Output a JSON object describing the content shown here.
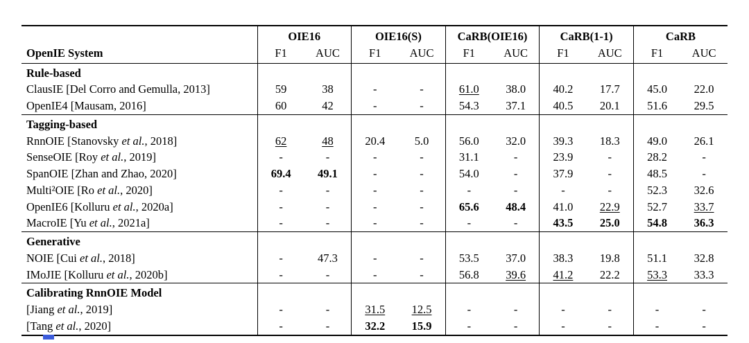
{
  "page": {
    "background": "#ffffff",
    "text_color": "#000000",
    "artifact_color": "#3b5bdb"
  },
  "table": {
    "row_header": "OpenIE System",
    "col_groups": [
      {
        "label": "OIE16",
        "metrics": [
          "F1",
          "AUC"
        ]
      },
      {
        "label": "OIE16(S)",
        "metrics": [
          "F1",
          "AUC"
        ]
      },
      {
        "label": "CaRB(OIE16)",
        "metrics": [
          "F1",
          "AUC"
        ]
      },
      {
        "label": "CaRB(1-1)",
        "metrics": [
          "F1",
          "AUC"
        ]
      },
      {
        "label": "CaRB",
        "metrics": [
          "F1",
          "AUC"
        ]
      }
    ],
    "groups": [
      {
        "label": "Rule-based",
        "rows": [
          {
            "name": [
              {
                "t": "ClausIE [Del Corro and Gemulla, 2013]"
              }
            ],
            "values": [
              {
                "t": "59"
              },
              {
                "t": "38"
              },
              {
                "t": "-"
              },
              {
                "t": "-"
              },
              {
                "t": "61.0",
                "u": true
              },
              {
                "t": "38.0"
              },
              {
                "t": "40.2"
              },
              {
                "t": "17.7"
              },
              {
                "t": "45.0"
              },
              {
                "t": "22.0"
              }
            ]
          },
          {
            "name": [
              {
                "t": "OpenIE4 [Mausam, 2016]"
              }
            ],
            "values": [
              {
                "t": "60"
              },
              {
                "t": "42"
              },
              {
                "t": "-"
              },
              {
                "t": "-"
              },
              {
                "t": "54.3"
              },
              {
                "t": "37.1"
              },
              {
                "t": "40.5"
              },
              {
                "t": "20.1"
              },
              {
                "t": "51.6"
              },
              {
                "t": "29.5"
              }
            ]
          }
        ]
      },
      {
        "label": "Tagging-based",
        "rows": [
          {
            "name": [
              {
                "t": "RnnOIE [Stanovsky "
              },
              {
                "t": "et al.",
                "i": true
              },
              {
                "t": ", 2018]"
              }
            ],
            "values": [
              {
                "t": "62",
                "u": true
              },
              {
                "t": "48",
                "u": true
              },
              {
                "t": "20.4"
              },
              {
                "t": "5.0"
              },
              {
                "t": "56.0"
              },
              {
                "t": "32.0"
              },
              {
                "t": "39.3"
              },
              {
                "t": "18.3"
              },
              {
                "t": "49.0"
              },
              {
                "t": "26.1"
              }
            ]
          },
          {
            "name": [
              {
                "t": "SenseOIE [Roy "
              },
              {
                "t": "et al.",
                "i": true
              },
              {
                "t": ", 2019]"
              }
            ],
            "values": [
              {
                "t": "-"
              },
              {
                "t": "-"
              },
              {
                "t": "-"
              },
              {
                "t": "-"
              },
              {
                "t": "31.1"
              },
              {
                "t": "-"
              },
              {
                "t": "23.9"
              },
              {
                "t": "-"
              },
              {
                "t": "28.2"
              },
              {
                "t": "-"
              }
            ]
          },
          {
            "name": [
              {
                "t": "SpanOIE [Zhan and Zhao, 2020]"
              }
            ],
            "values": [
              {
                "t": "69.4",
                "b": true
              },
              {
                "t": "49.1",
                "b": true
              },
              {
                "t": "-"
              },
              {
                "t": "-"
              },
              {
                "t": "54.0"
              },
              {
                "t": "-"
              },
              {
                "t": "37.9"
              },
              {
                "t": "-"
              },
              {
                "t": "48.5"
              },
              {
                "t": "-"
              }
            ]
          },
          {
            "name": [
              {
                "t": "Multi²OIE [Ro "
              },
              {
                "t": "et al.",
                "i": true
              },
              {
                "t": ", 2020]"
              }
            ],
            "values": [
              {
                "t": "-"
              },
              {
                "t": "-"
              },
              {
                "t": "-"
              },
              {
                "t": "-"
              },
              {
                "t": "-"
              },
              {
                "t": "-"
              },
              {
                "t": "-"
              },
              {
                "t": "-"
              },
              {
                "t": "52.3"
              },
              {
                "t": "32.6"
              }
            ]
          },
          {
            "name": [
              {
                "t": "OpenIE6 [Kolluru "
              },
              {
                "t": "et al.",
                "i": true
              },
              {
                "t": ", 2020a]"
              }
            ],
            "values": [
              {
                "t": "-"
              },
              {
                "t": "-"
              },
              {
                "t": "-"
              },
              {
                "t": "-"
              },
              {
                "t": "65.6",
                "b": true
              },
              {
                "t": "48.4",
                "b": true
              },
              {
                "t": "41.0"
              },
              {
                "t": "22.9",
                "u": true
              },
              {
                "t": "52.7"
              },
              {
                "t": "33.7",
                "u": true
              }
            ]
          },
          {
            "name": [
              {
                "t": "MacroIE [Yu "
              },
              {
                "t": "et al.",
                "i": true
              },
              {
                "t": ", 2021a]"
              }
            ],
            "values": [
              {
                "t": "-"
              },
              {
                "t": "-"
              },
              {
                "t": "-"
              },
              {
                "t": "-"
              },
              {
                "t": "-"
              },
              {
                "t": "-"
              },
              {
                "t": "43.5",
                "b": true
              },
              {
                "t": "25.0",
                "b": true
              },
              {
                "t": "54.8",
                "b": true
              },
              {
                "t": "36.3",
                "b": true
              }
            ]
          }
        ]
      },
      {
        "label": "Generative",
        "rows": [
          {
            "name": [
              {
                "t": "NOIE [Cui "
              },
              {
                "t": "et al.",
                "i": true
              },
              {
                "t": ", 2018]"
              }
            ],
            "values": [
              {
                "t": "-"
              },
              {
                "t": "47.3"
              },
              {
                "t": "-"
              },
              {
                "t": "-"
              },
              {
                "t": "53.5"
              },
              {
                "t": "37.0"
              },
              {
                "t": "38.3"
              },
              {
                "t": "19.8"
              },
              {
                "t": "51.1"
              },
              {
                "t": "32.8"
              }
            ]
          },
          {
            "name": [
              {
                "t": "IMoJIE [Kolluru "
              },
              {
                "t": "et al.",
                "i": true
              },
              {
                "t": ", 2020b]"
              }
            ],
            "values": [
              {
                "t": "-"
              },
              {
                "t": "-"
              },
              {
                "t": "-"
              },
              {
                "t": "-"
              },
              {
                "t": "56.8"
              },
              {
                "t": "39.6",
                "u": true
              },
              {
                "t": "41.2",
                "u": true
              },
              {
                "t": "22.2"
              },
              {
                "t": "53.3",
                "u": true
              },
              {
                "t": "33.3"
              }
            ]
          }
        ]
      },
      {
        "label": "Calibrating RnnOIE Model",
        "rows": [
          {
            "name": [
              {
                "t": "[Jiang "
              },
              {
                "t": "et al.",
                "i": true
              },
              {
                "t": ", 2019]"
              }
            ],
            "values": [
              {
                "t": "-"
              },
              {
                "t": "-"
              },
              {
                "t": "31.5",
                "u": true
              },
              {
                "t": "12.5",
                "u": true
              },
              {
                "t": "-"
              },
              {
                "t": "-"
              },
              {
                "t": "-"
              },
              {
                "t": "-"
              },
              {
                "t": "-"
              },
              {
                "t": "-"
              }
            ]
          },
          {
            "name": [
              {
                "t": "[Tang "
              },
              {
                "t": "et al.",
                "i": true
              },
              {
                "t": ", 2020]"
              }
            ],
            "values": [
              {
                "t": "-"
              },
              {
                "t": "-"
              },
              {
                "t": "32.2",
                "b": true
              },
              {
                "t": "15.9",
                "b": true
              },
              {
                "t": "-"
              },
              {
                "t": "-"
              },
              {
                "t": "-"
              },
              {
                "t": "-"
              },
              {
                "t": "-"
              },
              {
                "t": "-"
              }
            ]
          }
        ]
      }
    ]
  }
}
